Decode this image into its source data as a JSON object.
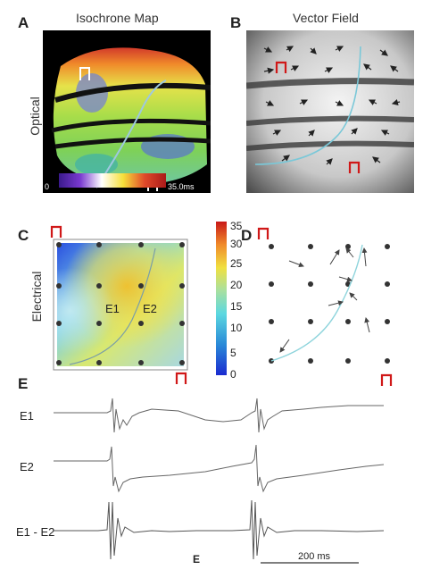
{
  "figure": {
    "panel_letters": [
      "A",
      "B",
      "C",
      "D",
      "E"
    ],
    "titles": {
      "a": "Isochrone Map",
      "b": "Vector Field"
    },
    "row_labels": {
      "optical": "Optical",
      "electrical": "Electrical"
    },
    "panel_a": {
      "scale_min": "0",
      "scale_max": "35.0ms"
    },
    "panel_c": {
      "colorbar_ticks": [
        "35",
        "30",
        "25",
        "20",
        "15",
        "10",
        "5",
        "0"
      ],
      "electrodes": {
        "e1": "E1",
        "e2": "E2"
      }
    },
    "panel_e": {
      "trace_labels": [
        "E1",
        "E2",
        "E1 - E2"
      ],
      "bottom_label": "E",
      "scalebar_label": "200 ms"
    }
  }
}
